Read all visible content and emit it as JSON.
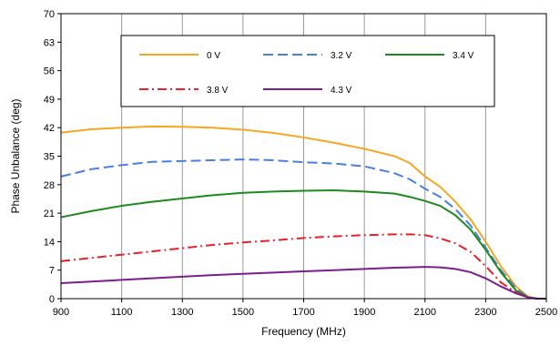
{
  "chart_data": {
    "type": "line",
    "title": "",
    "xlabel": "Frequency (MHz)",
    "ylabel": "Phase Unbalance (deg)",
    "xlim": [
      900,
      2500
    ],
    "ylim": [
      0,
      70
    ],
    "x_ticks": [
      900,
      1100,
      1300,
      1500,
      1700,
      1900,
      2100,
      2300,
      2500
    ],
    "y_ticks": [
      0,
      7,
      14,
      21,
      28,
      35,
      42,
      49,
      56,
      63,
      70
    ],
    "grid": {
      "vertical": true,
      "horizontal": false
    },
    "legend_position": "top-center",
    "series": [
      {
        "name": "0 V",
        "color": "#F5A623",
        "dash": "solid",
        "x": [
          900,
          1000,
          1100,
          1200,
          1300,
          1400,
          1500,
          1600,
          1700,
          1800,
          1900,
          2000,
          2050,
          2100,
          2150,
          2200,
          2250,
          2300,
          2350,
          2400,
          2440,
          2470,
          2500
        ],
        "y": [
          40.8,
          41.6,
          42.0,
          42.3,
          42.2,
          42.0,
          41.5,
          40.7,
          39.6,
          38.3,
          36.8,
          35.0,
          33.3,
          30.0,
          27.5,
          23.8,
          19.5,
          14.0,
          8.0,
          3.0,
          0.5,
          0.0,
          0.0
        ]
      },
      {
        "name": "3.2 V",
        "color": "#4A7FE0",
        "dash": "dashed",
        "x": [
          900,
          1000,
          1100,
          1200,
          1300,
          1400,
          1500,
          1600,
          1700,
          1800,
          1900,
          2000,
          2050,
          2100,
          2150,
          2200,
          2250,
          2300,
          2350,
          2400,
          2440,
          2470,
          2500
        ],
        "y": [
          30.0,
          31.8,
          32.8,
          33.6,
          33.8,
          34.0,
          34.2,
          34.0,
          33.5,
          33.2,
          32.5,
          30.8,
          29.3,
          27.0,
          25.0,
          22.0,
          18.0,
          12.5,
          7.0,
          2.5,
          0.3,
          0.0,
          0.0
        ]
      },
      {
        "name": "3.4 V",
        "color": "#1E8A1E",
        "dash": "solid",
        "x": [
          900,
          1000,
          1100,
          1200,
          1300,
          1400,
          1500,
          1600,
          1700,
          1800,
          1900,
          2000,
          2050,
          2100,
          2150,
          2200,
          2250,
          2300,
          2350,
          2400,
          2440,
          2470,
          2500
        ],
        "y": [
          20.0,
          21.5,
          22.8,
          23.8,
          24.6,
          25.4,
          26.0,
          26.3,
          26.5,
          26.6,
          26.3,
          25.8,
          25.0,
          24.0,
          22.8,
          20.5,
          17.0,
          12.0,
          6.5,
          2.0,
          0.3,
          0.0,
          0.0
        ]
      },
      {
        "name": "3.8 V",
        "color": "#E8202A",
        "dash": "dashdot",
        "x": [
          900,
          1000,
          1100,
          1200,
          1300,
          1400,
          1500,
          1600,
          1700,
          1800,
          1900,
          2000,
          2050,
          2100,
          2150,
          2200,
          2250,
          2300,
          2350,
          2400,
          2440,
          2470,
          2500
        ],
        "y": [
          9.2,
          10.0,
          10.8,
          11.6,
          12.4,
          13.2,
          13.8,
          14.3,
          14.9,
          15.3,
          15.6,
          15.8,
          15.8,
          15.6,
          14.8,
          13.6,
          11.5,
          8.0,
          4.0,
          1.5,
          0.3,
          0.0,
          0.0
        ]
      },
      {
        "name": "4.3 V",
        "color": "#7B1F8C",
        "dash": "solid",
        "x": [
          900,
          1000,
          1100,
          1200,
          1300,
          1400,
          1500,
          1600,
          1700,
          1800,
          1900,
          2000,
          2050,
          2100,
          2150,
          2200,
          2250,
          2300,
          2350,
          2400,
          2440,
          2470,
          2500
        ],
        "y": [
          3.8,
          4.2,
          4.6,
          5.0,
          5.4,
          5.8,
          6.1,
          6.4,
          6.7,
          7.0,
          7.3,
          7.6,
          7.7,
          7.8,
          7.7,
          7.3,
          6.5,
          5.0,
          3.0,
          1.3,
          0.3,
          0.0,
          0.0
        ]
      }
    ]
  }
}
